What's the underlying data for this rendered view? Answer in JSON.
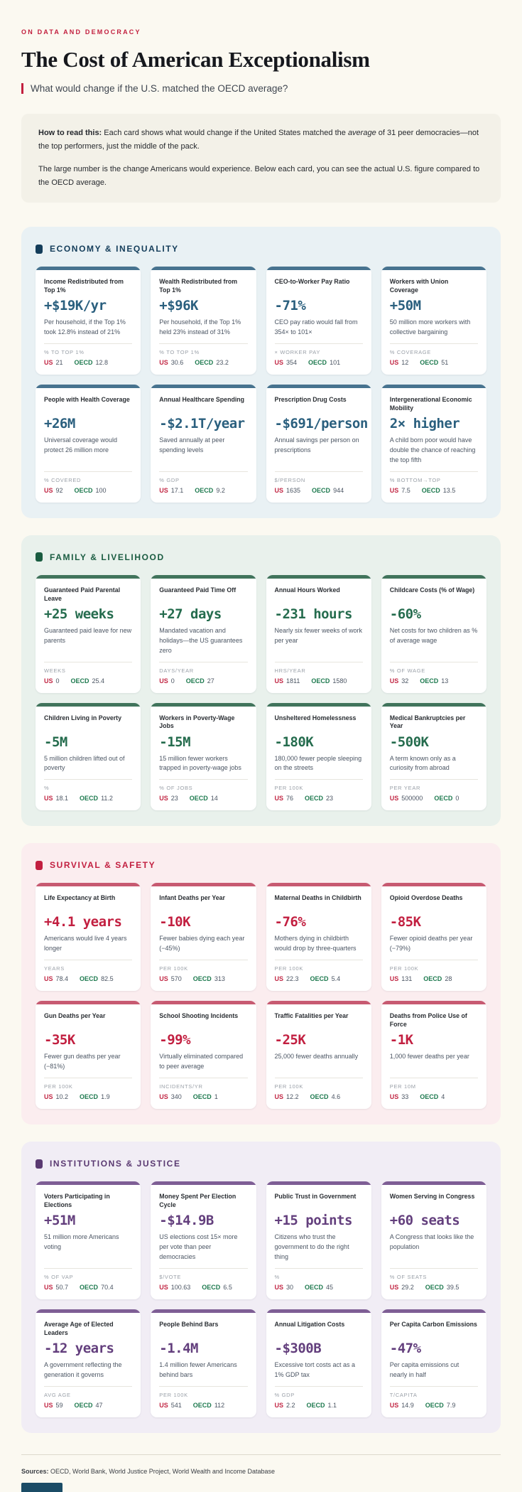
{
  "page": {
    "kicker": "ON DATA AND DEMOCRACY",
    "title": "The Cost of American Exceptionalism",
    "subtitle": "What would change if the U.S. matched the OECD average?",
    "howto": {
      "lead": "How to read this:",
      "p1_before": " Each card shows what would change if the United States matched the ",
      "p1_italic": "average",
      "p1_after": " of 31 peer democracies—not the top performers, just the middle of the pack.",
      "p2": "The large number is the change Americans would experience. Below each card, you can see the actual U.S. figure compared to the OECD average."
    },
    "stat_us_label": "US",
    "stat_oecd_label": "OECD",
    "sources_lead": "Sources:",
    "sources_text": " OECD, World Bank, World Justice Project, World Wealth and Income Database"
  },
  "sections": [
    {
      "id": "economy",
      "label": "ECONOMY & INEQUALITY",
      "colors": {
        "bg": "#E9F1F4",
        "accent": "#47738F",
        "heading": "#143D5A",
        "value": "#2A5F7E"
      },
      "cards": [
        {
          "title": "Income Redistributed from Top 1%",
          "value": "+$19K/yr",
          "desc": "Per household, if the Top 1% took 12.8% instead of 21%",
          "stat_label": "% TO TOP 1%",
          "us": "21",
          "oecd": "12.8"
        },
        {
          "title": "Wealth Redistributed from Top 1%",
          "value": "+$96K",
          "desc": "Per household, if the Top 1% held 23% instead of 31%",
          "stat_label": "% TO TOP 1%",
          "us": "30.6",
          "oecd": "23.2"
        },
        {
          "title": "CEO-to-Worker Pay Ratio",
          "value": "-71%",
          "desc": "CEO pay ratio would fall from 354× to 101×",
          "stat_label": "× WORKER PAY",
          "us": "354",
          "oecd": "101"
        },
        {
          "title": "Workers with Union Coverage",
          "value": "+50M",
          "desc": "50 million more workers with collective bargaining",
          "stat_label": "% COVERAGE",
          "us": "12",
          "oecd": "51"
        },
        {
          "title": "People with Health Coverage",
          "value": "+26M",
          "desc": "Universal coverage would protect 26 million more",
          "stat_label": "% COVERED",
          "us": "92",
          "oecd": "100"
        },
        {
          "title": "Annual Healthcare Spending",
          "value": "-$2.1T/year",
          "desc": "Saved annually at peer spending levels",
          "stat_label": "% GDP",
          "us": "17.1",
          "oecd": "9.2"
        },
        {
          "title": "Prescription Drug Costs",
          "value": "-$691/person",
          "desc": "Annual savings per person on prescriptions",
          "stat_label": "$/PERSON",
          "us": "1635",
          "oecd": "944"
        },
        {
          "title": "Intergenerational Economic Mobility",
          "value": "2× higher",
          "desc": "A child born poor would have double the chance of reaching the top fifth",
          "stat_label": "% BOTTOM→TOP",
          "us": "7.5",
          "oecd": "13.5"
        }
      ]
    },
    {
      "id": "family",
      "label": "FAMILY & LIVELIHOOD",
      "colors": {
        "bg": "#E9F1EC",
        "accent": "#41745C",
        "heading": "#1A5C41",
        "value": "#256C4E"
      },
      "cards": [
        {
          "title": "Guaranteed Paid Parental Leave",
          "value": "+25 weeks",
          "desc": "Guaranteed paid leave for new parents",
          "stat_label": "WEEKS",
          "us": "0",
          "oecd": "25.4"
        },
        {
          "title": "Guaranteed Paid Time Off",
          "value": "+27 days",
          "desc": "Mandated vacation and holidays—the US guarantees zero",
          "stat_label": "DAYS/YEAR",
          "us": "0",
          "oecd": "27"
        },
        {
          "title": "Annual Hours Worked",
          "value": "-231 hours",
          "desc": "Nearly six fewer weeks of work per year",
          "stat_label": "HRS/YEAR",
          "us": "1811",
          "oecd": "1580"
        },
        {
          "title": "Childcare Costs (% of Wage)",
          "value": "-60%",
          "desc": "Net costs for two children as % of average wage",
          "stat_label": "% OF WAGE",
          "us": "32",
          "oecd": "13"
        },
        {
          "title": "Children Living in Poverty",
          "value": "-5M",
          "desc": "5 million children lifted out of poverty",
          "stat_label": "%",
          "us": "18.1",
          "oecd": "11.2"
        },
        {
          "title": "Workers in Poverty-Wage Jobs",
          "value": "-15M",
          "desc": "15 million fewer workers trapped in poverty-wage jobs",
          "stat_label": "% OF JOBS",
          "us": "23",
          "oecd": "14"
        },
        {
          "title": "Unsheltered Homelessness",
          "value": "-180K",
          "desc": "180,000 fewer people sleeping on the streets",
          "stat_label": "PER 100K",
          "us": "76",
          "oecd": "23"
        },
        {
          "title": "Medical Bankruptcies per Year",
          "value": "-500K",
          "desc": "A term known only as a curiosity from abroad",
          "stat_label": "PER YEAR",
          "us": "500000",
          "oecd": "0"
        }
      ]
    },
    {
      "id": "survival",
      "label": "SURVIVAL & SAFETY",
      "colors": {
        "bg": "#FBEDEF",
        "accent": "#C75A71",
        "heading": "#C21F40",
        "value": "#C21F40"
      },
      "cards": [
        {
          "title": "Life Expectancy at Birth",
          "value": "+4.1 years",
          "desc": "Americans would live 4 years longer",
          "stat_label": "YEARS",
          "us": "78.4",
          "oecd": "82.5"
        },
        {
          "title": "Infant Deaths per Year",
          "value": "-10K",
          "desc": "Fewer babies dying each year (−45%)",
          "stat_label": "PER 100K",
          "us": "570",
          "oecd": "313"
        },
        {
          "title": "Maternal Deaths in Childbirth",
          "value": "-76%",
          "desc": "Mothers dying in childbirth would drop by three-quarters",
          "stat_label": "PER 100K",
          "us": "22.3",
          "oecd": "5.4"
        },
        {
          "title": "Opioid Overdose Deaths",
          "value": "-85K",
          "desc": "Fewer opioid deaths per year (−79%)",
          "stat_label": "PER 100K",
          "us": "131",
          "oecd": "28"
        },
        {
          "title": "Gun Deaths per Year",
          "value": "-35K",
          "desc": "Fewer gun deaths per year (−81%)",
          "stat_label": "PER 100K",
          "us": "10.2",
          "oecd": "1.9"
        },
        {
          "title": "School Shooting Incidents",
          "value": "-99%",
          "desc": "Virtually eliminated compared to peer average",
          "stat_label": "INCIDENTS/YR",
          "us": "340",
          "oecd": "1"
        },
        {
          "title": "Traffic Fatalities per Year",
          "value": "-25K",
          "desc": "25,000 fewer deaths annually",
          "stat_label": "PER 100K",
          "us": "12.2",
          "oecd": "4.6"
        },
        {
          "title": "Deaths from Police Use of Force",
          "value": "-1K",
          "desc": "1,000 fewer deaths per year",
          "stat_label": "PER 10M",
          "us": "33",
          "oecd": "4"
        }
      ]
    },
    {
      "id": "institutions",
      "label": "INSTITUTIONS & JUSTICE",
      "colors": {
        "bg": "#F1EDF5",
        "accent": "#7E5E95",
        "heading": "#5A3971",
        "value": "#633F7D"
      },
      "cards": [
        {
          "title": "Voters Participating in Elections",
          "value": "+51M",
          "desc": "51 million more Americans voting",
          "stat_label": "% OF VAP",
          "us": "50.7",
          "oecd": "70.4"
        },
        {
          "title": "Money Spent Per Election Cycle",
          "value": "-$14.9B",
          "desc": "US elections cost 15× more per vote than peer democracies",
          "stat_label": "$/VOTE",
          "us": "100.63",
          "oecd": "6.5"
        },
        {
          "title": "Public Trust in Government",
          "value": "+15 points",
          "desc": "Citizens who trust the government to do the right thing",
          "stat_label": "%",
          "us": "30",
          "oecd": "45"
        },
        {
          "title": "Women Serving in Congress",
          "value": "+60 seats",
          "desc": "A Congress that looks like the population",
          "stat_label": "% OF SEATS",
          "us": "29.2",
          "oecd": "39.5"
        },
        {
          "title": "Average Age of Elected Leaders",
          "value": "-12 years",
          "desc": "A government reflecting the generation it governs",
          "stat_label": "AVG AGE",
          "us": "59",
          "oecd": "47"
        },
        {
          "title": "People Behind Bars",
          "value": "-1.4M",
          "desc": "1.4 million fewer Americans behind bars",
          "stat_label": "PER 100K",
          "us": "541",
          "oecd": "112"
        },
        {
          "title": "Annual Litigation Costs",
          "value": "-$300B",
          "desc": "Excessive tort costs act as a 1% GDP tax",
          "stat_label": "% GDP",
          "us": "2.2",
          "oecd": "1.1"
        },
        {
          "title": "Per Capita Carbon Emissions",
          "value": "-47%",
          "desc": "Per capita emissions cut nearly in half",
          "stat_label": "T/CAPITA",
          "us": "14.9",
          "oecd": "7.9"
        }
      ]
    }
  ]
}
